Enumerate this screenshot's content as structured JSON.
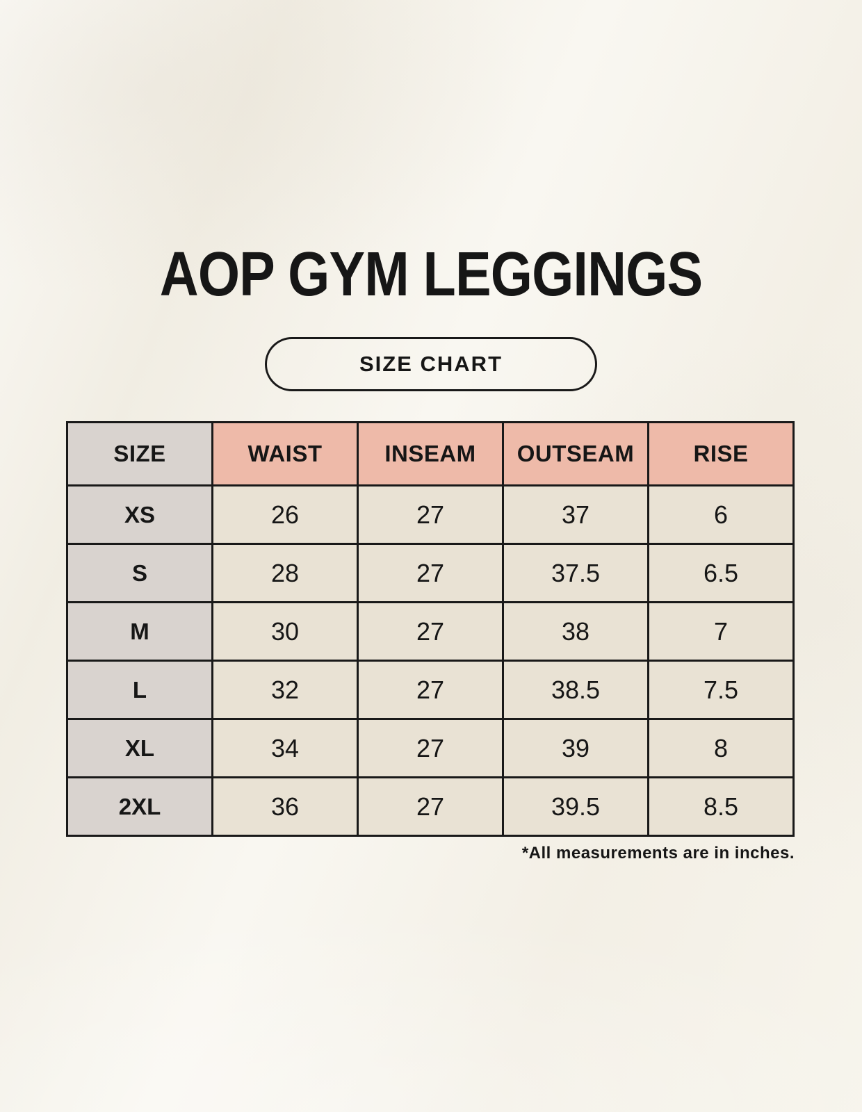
{
  "header": {
    "title": "AOP GYM LEGGINGS",
    "badge_label": "SIZE CHART"
  },
  "footnote": "*All measurements are in inches.",
  "chart_data": {
    "type": "table",
    "title": "AOP GYM LEGGINGS",
    "subtitle": "SIZE CHART",
    "columns": [
      "SIZE",
      "WAIST",
      "INSEAM",
      "OUTSEAM",
      "RISE"
    ],
    "rows": [
      [
        "XS",
        "26",
        "27",
        "37",
        "6"
      ],
      [
        "S",
        "28",
        "27",
        "37.5",
        "6.5"
      ],
      [
        "M",
        "30",
        "27",
        "38",
        "7"
      ],
      [
        "L",
        "32",
        "27",
        "38.5",
        "7.5"
      ],
      [
        "XL",
        "34",
        "27",
        "39",
        "8"
      ],
      [
        "2XL",
        "36",
        "27",
        "39.5",
        "8.5"
      ]
    ],
    "units_note": "*All measurements are in inches.",
    "layout": {
      "header_row_fill": "pink except first gray cell",
      "first_column_fill": "gray",
      "data_cell_fill": "cream",
      "grid": "black 3px borders, all cells"
    }
  },
  "colors": {
    "page_bg": "#f6f3ea",
    "table_pink": "#eebaa9",
    "table_gray": "#d9d3cf",
    "table_cream": "#e9e2d4",
    "line": "#191919",
    "text": "#161616"
  }
}
